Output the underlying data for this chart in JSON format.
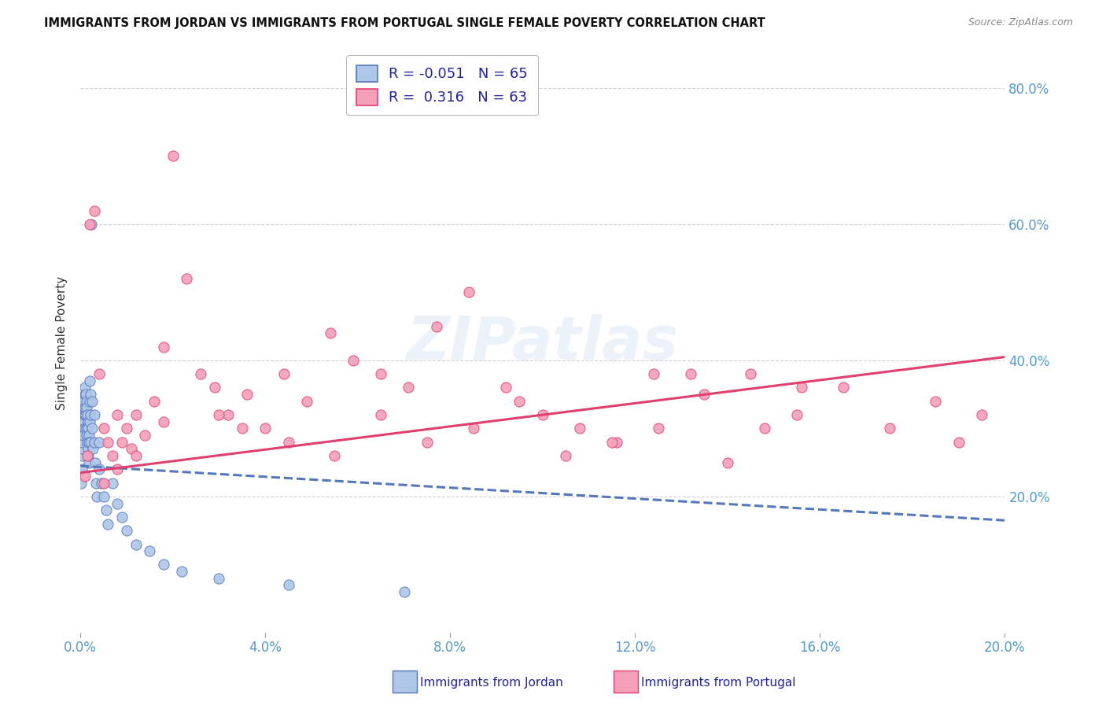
{
  "title": "IMMIGRANTS FROM JORDAN VS IMMIGRANTS FROM PORTUGAL SINGLE FEMALE POVERTY CORRELATION CHART",
  "source": "Source: ZipAtlas.com",
  "ylabel": "Single Female Poverty",
  "xlim": [
    0.0,
    0.2
  ],
  "ylim": [
    0.0,
    0.85
  ],
  "yticks": [
    0.2,
    0.4,
    0.6,
    0.8
  ],
  "xticks": [
    0.0,
    0.04,
    0.08,
    0.12,
    0.16,
    0.2
  ],
  "jordan_color": "#aec6e8",
  "portugal_color": "#f4a0bb",
  "jordan_line_color": "#5577bb",
  "portugal_line_color": "#e04070",
  "background_color": "#ffffff",
  "grid_color": "#cccccc",
  "axis_label_color": "#5599cc",
  "legend_r_jordan": "-0.051",
  "legend_n_jordan": "65",
  "legend_r_portugal": "0.316",
  "legend_n_portugal": "63",
  "jordan_x": [
    0.0002,
    0.0003,
    0.0003,
    0.0004,
    0.0004,
    0.0005,
    0.0005,
    0.0006,
    0.0006,
    0.0007,
    0.0007,
    0.0008,
    0.0008,
    0.0009,
    0.0009,
    0.001,
    0.001,
    0.001,
    0.0012,
    0.0012,
    0.0013,
    0.0013,
    0.0014,
    0.0014,
    0.0015,
    0.0015,
    0.0016,
    0.0016,
    0.0017,
    0.0017,
    0.0018,
    0.0018,
    0.0019,
    0.002,
    0.002,
    0.002,
    0.0021,
    0.0022,
    0.0022,
    0.0023,
    0.0025,
    0.0026,
    0.0027,
    0.003,
    0.003,
    0.0032,
    0.0034,
    0.0036,
    0.004,
    0.004,
    0.0045,
    0.005,
    0.0055,
    0.006,
    0.007,
    0.008,
    0.009,
    0.01,
    0.012,
    0.015,
    0.018,
    0.022,
    0.03,
    0.045,
    0.07
  ],
  "jordan_y": [
    0.22,
    0.26,
    0.24,
    0.29,
    0.27,
    0.31,
    0.28,
    0.33,
    0.3,
    0.32,
    0.29,
    0.34,
    0.31,
    0.35,
    0.32,
    0.36,
    0.33,
    0.3,
    0.35,
    0.32,
    0.34,
    0.3,
    0.33,
    0.29,
    0.32,
    0.28,
    0.31,
    0.27,
    0.3,
    0.26,
    0.29,
    0.25,
    0.28,
    0.37,
    0.34,
    0.31,
    0.35,
    0.32,
    0.28,
    0.6,
    0.34,
    0.3,
    0.27,
    0.32,
    0.28,
    0.25,
    0.22,
    0.2,
    0.28,
    0.24,
    0.22,
    0.2,
    0.18,
    0.16,
    0.22,
    0.19,
    0.17,
    0.15,
    0.13,
    0.12,
    0.1,
    0.09,
    0.08,
    0.07,
    0.06
  ],
  "portugal_x": [
    0.001,
    0.0015,
    0.002,
    0.003,
    0.004,
    0.005,
    0.006,
    0.007,
    0.008,
    0.009,
    0.01,
    0.011,
    0.012,
    0.014,
    0.016,
    0.018,
    0.02,
    0.023,
    0.026,
    0.029,
    0.032,
    0.036,
    0.04,
    0.044,
    0.049,
    0.054,
    0.059,
    0.065,
    0.071,
    0.077,
    0.084,
    0.092,
    0.1,
    0.108,
    0.116,
    0.124,
    0.132,
    0.14,
    0.148,
    0.156,
    0.03,
    0.035,
    0.045,
    0.055,
    0.065,
    0.075,
    0.085,
    0.095,
    0.105,
    0.115,
    0.125,
    0.135,
    0.145,
    0.155,
    0.165,
    0.175,
    0.185,
    0.19,
    0.195,
    0.005,
    0.008,
    0.012,
    0.018
  ],
  "portugal_y": [
    0.23,
    0.26,
    0.6,
    0.62,
    0.38,
    0.3,
    0.28,
    0.26,
    0.32,
    0.28,
    0.3,
    0.27,
    0.32,
    0.29,
    0.34,
    0.31,
    0.7,
    0.52,
    0.38,
    0.36,
    0.32,
    0.35,
    0.3,
    0.38,
    0.34,
    0.44,
    0.4,
    0.38,
    0.36,
    0.45,
    0.5,
    0.36,
    0.32,
    0.3,
    0.28,
    0.38,
    0.38,
    0.25,
    0.3,
    0.36,
    0.32,
    0.3,
    0.28,
    0.26,
    0.32,
    0.28,
    0.3,
    0.34,
    0.26,
    0.28,
    0.3,
    0.35,
    0.38,
    0.32,
    0.36,
    0.3,
    0.34,
    0.28,
    0.32,
    0.22,
    0.24,
    0.26,
    0.42
  ]
}
